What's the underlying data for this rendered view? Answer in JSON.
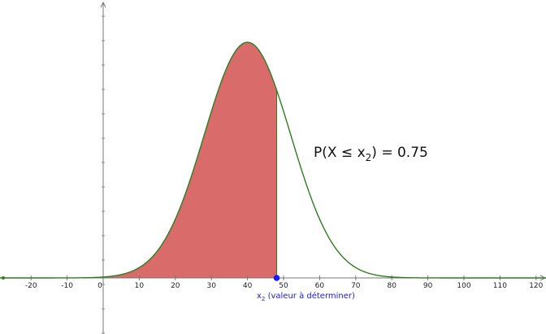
{
  "chart_data": {
    "type": "area",
    "distribution": {
      "family": "normal",
      "mean": 40,
      "sd": 12
    },
    "xlim": [
      -29,
      123
    ],
    "x_ticks": [
      -20,
      -10,
      0,
      10,
      20,
      30,
      40,
      50,
      60,
      70,
      80,
      90,
      100,
      110,
      120
    ],
    "shaded_interval": [
      -29,
      48.09
    ],
    "point": {
      "x": 48.09,
      "y": 0
    },
    "annotation": {
      "prefix": "P(X ≤ x",
      "subscript": "2",
      "suffix": ") = 0.75"
    },
    "point_label": {
      "main": "x",
      "subscript": "2",
      "rest": " (valeur à déterminer)"
    },
    "grid": false,
    "colors": {
      "curve": "#2e7d1f",
      "fill": "#d96b6b",
      "axis": "#777777",
      "point": "#1a1aff",
      "point_label": "#1a1ad6"
    }
  }
}
